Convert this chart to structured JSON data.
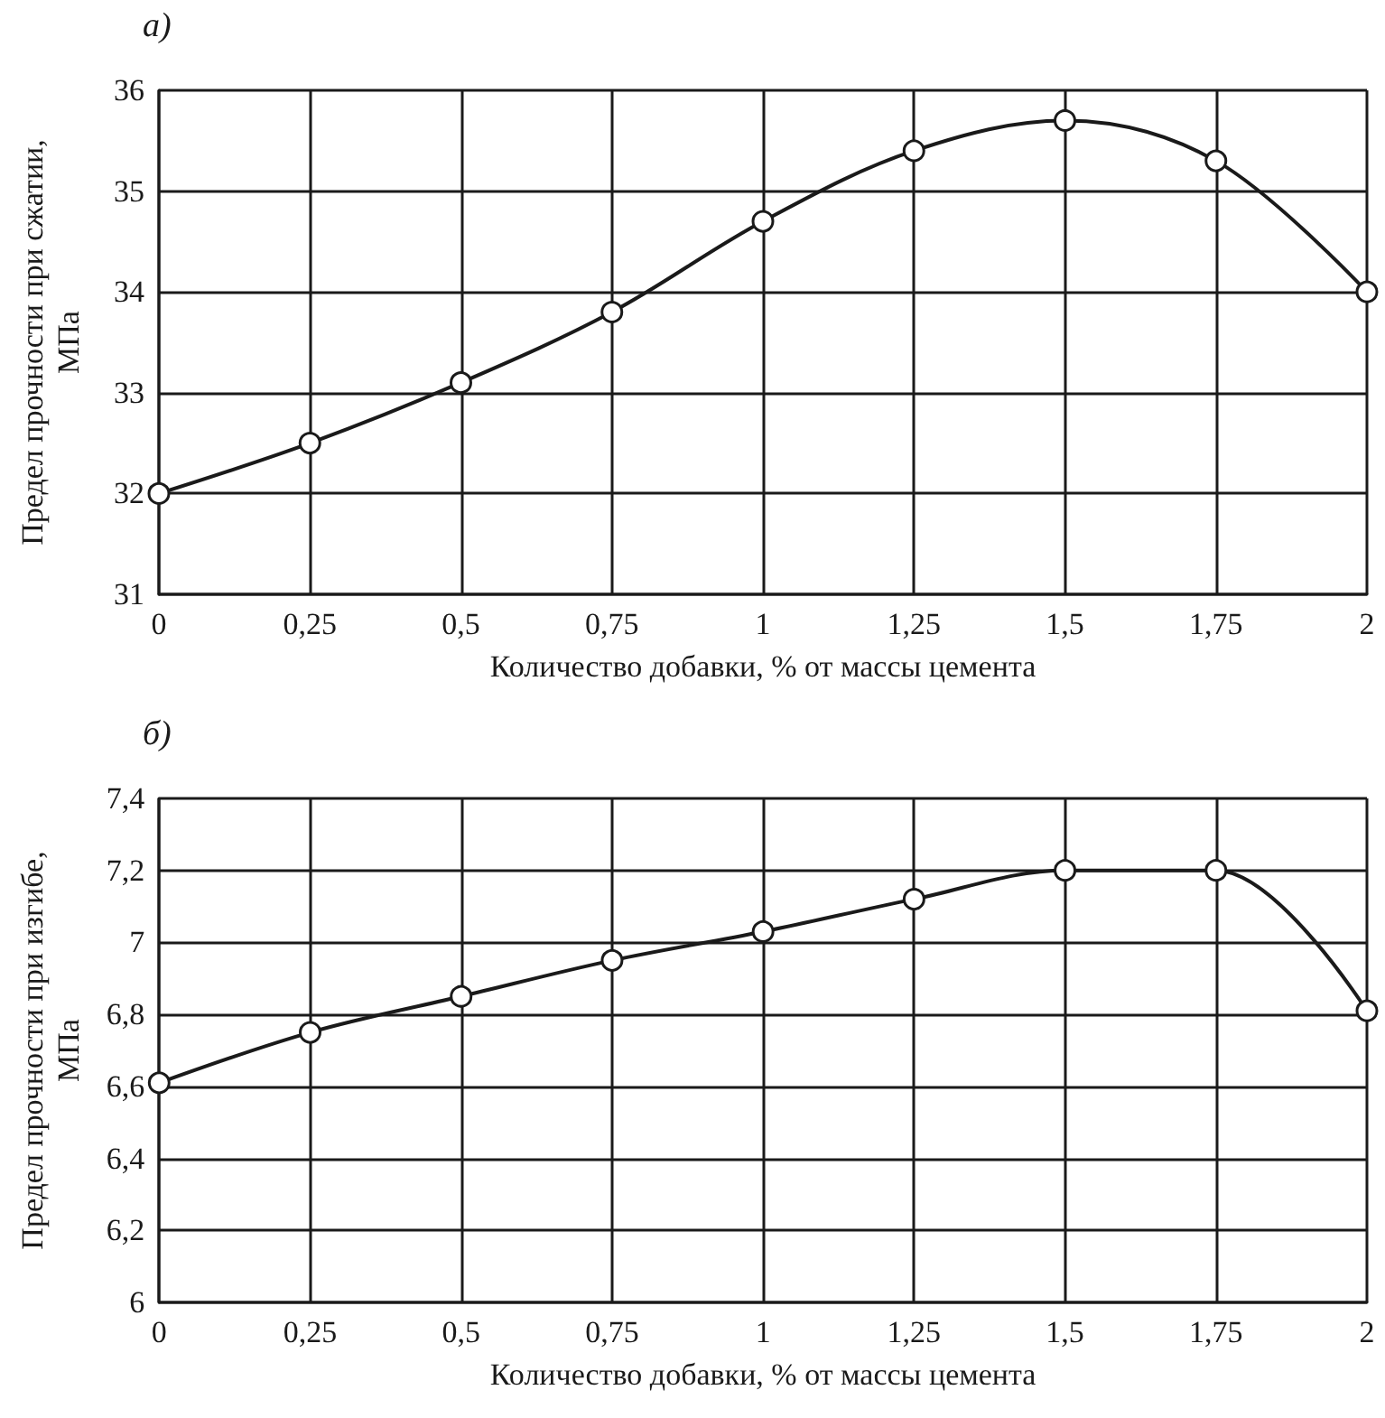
{
  "chart_data": [
    {
      "type": "line",
      "title": "а)",
      "xlabel": "Количество добавки, % от массы цемента",
      "ylabel": "Предел прочности при сжатии, МПа",
      "x": [
        0,
        0.25,
        0.5,
        0.75,
        1,
        1.25,
        1.5,
        1.75,
        2
      ],
      "series": [
        {
          "color": "#1a1a1a",
          "values": [
            32,
            32.5,
            33.1,
            33.8,
            34.7,
            35.4,
            35.7,
            35.3,
            34.0
          ]
        }
      ],
      "xlim": [
        0,
        2
      ],
      "xticks": [
        0,
        {
          "value": 0.25,
          "label": "0,25"
        },
        {
          "value": 0.5,
          "label": "0,5"
        },
        {
          "value": 0.75,
          "label": "0,75"
        },
        1,
        {
          "value": 1.25,
          "label": "1,25"
        },
        {
          "value": 1.5,
          "label": "1,5"
        },
        {
          "value": 1.75,
          "label": "1,75"
        },
        2
      ],
      "ylim": [
        31,
        36
      ],
      "yticks": [
        31,
        32,
        33,
        34,
        35,
        36
      ],
      "grid": true,
      "marker": "circle",
      "line_style": "solid"
    },
    {
      "type": "line",
      "title": "б)",
      "xlabel": "Количество добавки, % от массы цемента",
      "ylabel": "Предел прочности при изгибе, МПа",
      "x": [
        0,
        0.25,
        0.5,
        0.75,
        1,
        1.25,
        1.5,
        1.75,
        2
      ],
      "series": [
        {
          "color": "#1a1a1a",
          "values": [
            6.61,
            6.75,
            6.85,
            6.95,
            7.03,
            7.12,
            7.2,
            7.2,
            6.81
          ]
        }
      ],
      "xlim": [
        0,
        2
      ],
      "xticks": [
        0,
        {
          "value": 0.25,
          "label": "0,25"
        },
        {
          "value": 0.5,
          "label": "0,5"
        },
        {
          "value": 0.75,
          "label": "0,75"
        },
        1,
        {
          "value": 1.25,
          "label": "1,25"
        },
        {
          "value": 1.5,
          "label": "1,5"
        },
        {
          "value": 1.75,
          "label": "1,75"
        },
        2
      ],
      "ylim": [
        6,
        7.4
      ],
      "yticks": [
        6,
        {
          "value": 6.2,
          "label": "6,2"
        },
        {
          "value": 6.4,
          "label": "6,4"
        },
        {
          "value": 6.6,
          "label": "6,6"
        },
        {
          "value": 6.8,
          "label": "6,8"
        },
        7,
        {
          "value": 7.2,
          "label": "7,2"
        },
        {
          "value": 7.4,
          "label": "7,4"
        }
      ],
      "grid": true,
      "marker": "circle",
      "line_style": "solid"
    }
  ]
}
